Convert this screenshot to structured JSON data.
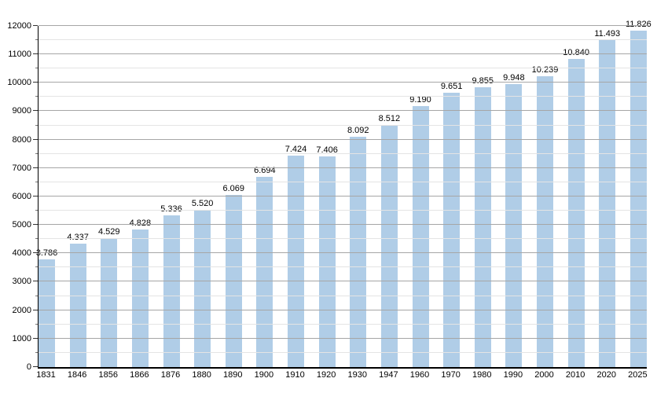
{
  "chart_data": {
    "type": "bar",
    "categories": [
      "1831",
      "1846",
      "1856",
      "1866",
      "1876",
      "1880",
      "1890",
      "1900",
      "1910",
      "1920",
      "1930",
      "1947",
      "1960",
      "1970",
      "1980",
      "1990",
      "2000",
      "2010",
      "2020",
      "2025"
    ],
    "values": [
      3786,
      4337,
      4529,
      4828,
      5336,
      5520,
      6069,
      6694,
      7424,
      7406,
      8092,
      8512,
      9190,
      9651,
      9855,
      9948,
      10239,
      10840,
      11493,
      11826
    ],
    "value_labels": [
      "3.786",
      "4.337",
      "4.529",
      "4.828",
      "5.336",
      "5.520",
      "6.069",
      "6.694",
      "7.424",
      "7.406",
      "8.092",
      "8.512",
      "9.190",
      "9.651",
      "9.855",
      "9.948",
      "10.239",
      "10.840",
      "11.493",
      "11.826"
    ],
    "xlabel": "",
    "ylabel": "",
    "ylim": [
      0,
      12000
    ],
    "y_major_step": 1000,
    "y_minor_step": 500,
    "y_tick_labels": [
      "0",
      "1000",
      "2000",
      "3000",
      "4000",
      "5000",
      "6000",
      "7000",
      "8000",
      "9000",
      "10000",
      "11000",
      "12000"
    ],
    "grid": true,
    "legend": "none",
    "colors": {
      "bar_fill": "#B0CDE7",
      "major_grid": "#A6A6A6",
      "minor_grid": "#E4E4E4",
      "major_tick": "#333333",
      "minor_tick": "#777777",
      "axis": "#000000",
      "label_text": "#000000",
      "background": "#FFFFFF"
    }
  }
}
